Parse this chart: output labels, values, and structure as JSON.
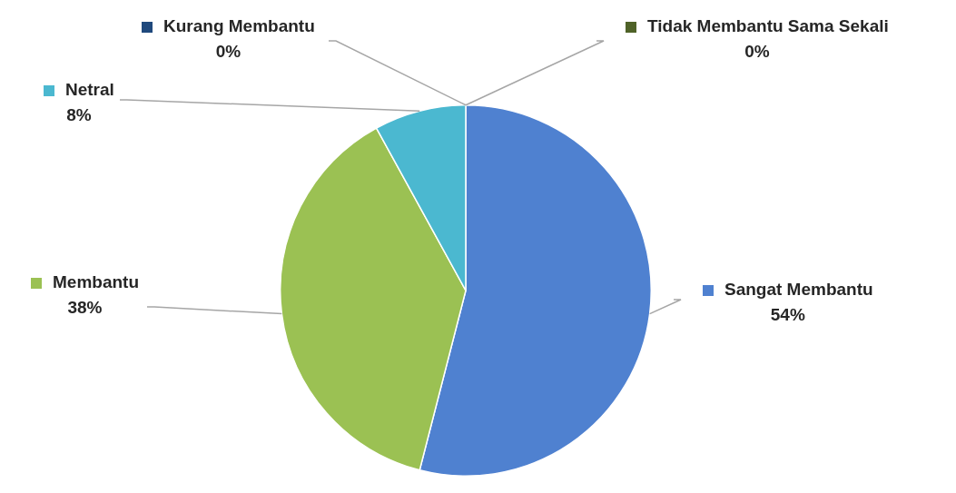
{
  "chart_data": {
    "type": "pie",
    "categories": [
      "Sangat Membantu",
      "Membantu",
      "Netral",
      "Kurang Membantu",
      "Tidak Membantu Sama Sekali"
    ],
    "values": [
      54,
      38,
      8,
      0,
      0
    ],
    "colors": [
      "#4f81d0",
      "#9bc153",
      "#4bb8d0",
      "#1f497d",
      "#4f6228"
    ],
    "value_labels": [
      "54%",
      "38%",
      "8%",
      "0%",
      "0%"
    ],
    "legend": "top"
  }
}
